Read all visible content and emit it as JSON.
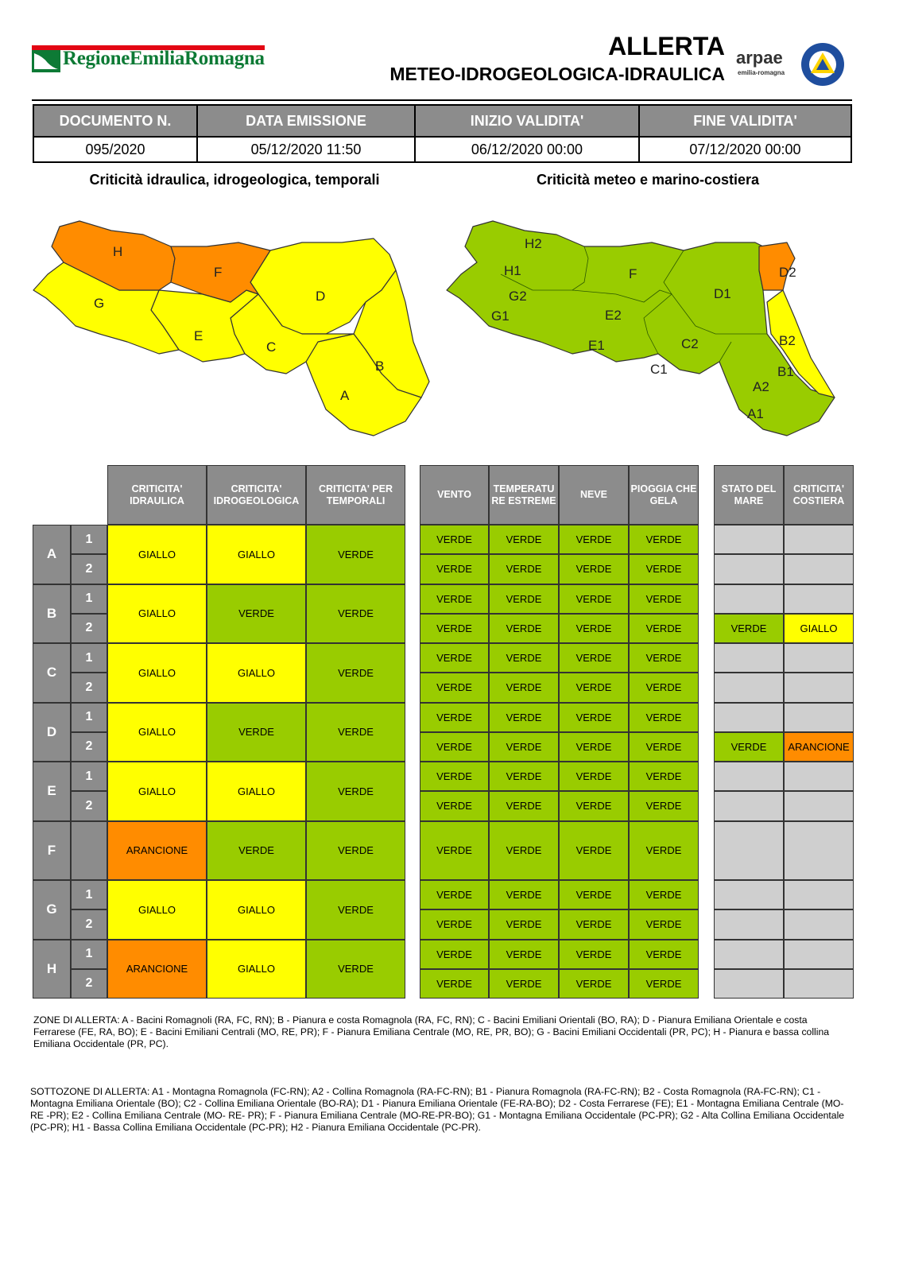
{
  "header": {
    "logo_text": "RegioneEmiliaRomagna",
    "title_line1": "ALLERTA",
    "title_line2": "METEO-IDROGEOLOGICA-IDRAULICA",
    "arpae": "arpae",
    "arpae_sub": "emilia-romagna"
  },
  "doc_table": {
    "headers": [
      "DOCUMENTO N.",
      "DATA EMISSIONE",
      "INIZIO VALIDITA'",
      "FINE VALIDITA'"
    ],
    "values": [
      "095/2020",
      "05/12/2020 11:50",
      "06/12/2020 00:00",
      "07/12/2020 00:00"
    ]
  },
  "maps": {
    "left_title": "Criticità idraulica, idrogeologica, temporali",
    "right_title": "Criticità meteo e marino-costiera",
    "left_labels": [
      "H",
      "F",
      "G",
      "D",
      "E",
      "C",
      "B",
      "A"
    ],
    "right_labels": [
      "H2",
      "H1",
      "G2",
      "G1",
      "F",
      "E2",
      "E1",
      "C2",
      "C1",
      "D1",
      "D2",
      "B2",
      "B1",
      "A2",
      "A1"
    ]
  },
  "colors": {
    "GIALLO": "#ffff00",
    "VERDE": "#99cc00",
    "ARANCIONE": "#ff8c00",
    "grey": "#8c8c8c"
  },
  "table": {
    "hydro_headers": [
      "CRITICITA' IDRAULICA",
      "CRITICITA' IDROGEOLOGICA",
      "CRITICITA' PER TEMPORALI"
    ],
    "meteo_headers": [
      "VENTO",
      "TEMPERATU RE ESTREME",
      "NEVE",
      "PIOGGIA CHE GELA"
    ],
    "sea_headers": [
      "STATO DEL MARE",
      "CRITICITA' COSTIERA"
    ],
    "zones": [
      {
        "zone": "A",
        "subs": [
          "1",
          "2"
        ],
        "hydro": [
          "GIALLO",
          "GIALLO",
          "VERDE"
        ],
        "meteo": [
          [
            "VERDE",
            "VERDE",
            "VERDE",
            "VERDE"
          ],
          [
            "VERDE",
            "VERDE",
            "VERDE",
            "VERDE"
          ]
        ],
        "sea": [
          [
            "",
            ""
          ],
          [
            "",
            ""
          ]
        ]
      },
      {
        "zone": "B",
        "subs": [
          "1",
          "2"
        ],
        "hydro": [
          "GIALLO",
          "VERDE",
          "VERDE"
        ],
        "meteo": [
          [
            "VERDE",
            "VERDE",
            "VERDE",
            "VERDE"
          ],
          [
            "VERDE",
            "VERDE",
            "VERDE",
            "VERDE"
          ]
        ],
        "sea": [
          [
            "",
            ""
          ],
          [
            "VERDE",
            "GIALLO"
          ]
        ]
      },
      {
        "zone": "C",
        "subs": [
          "1",
          "2"
        ],
        "hydro": [
          "GIALLO",
          "GIALLO",
          "VERDE"
        ],
        "meteo": [
          [
            "VERDE",
            "VERDE",
            "VERDE",
            "VERDE"
          ],
          [
            "VERDE",
            "VERDE",
            "VERDE",
            "VERDE"
          ]
        ],
        "sea": [
          [
            "",
            ""
          ],
          [
            "",
            ""
          ]
        ]
      },
      {
        "zone": "D",
        "subs": [
          "1",
          "2"
        ],
        "hydro": [
          "GIALLO",
          "VERDE",
          "VERDE"
        ],
        "meteo": [
          [
            "VERDE",
            "VERDE",
            "VERDE",
            "VERDE"
          ],
          [
            "VERDE",
            "VERDE",
            "VERDE",
            "VERDE"
          ]
        ],
        "sea": [
          [
            "",
            ""
          ],
          [
            "VERDE",
            "ARANCIONE"
          ]
        ]
      },
      {
        "zone": "E",
        "subs": [
          "1",
          "2"
        ],
        "hydro": [
          "GIALLO",
          "GIALLO",
          "VERDE"
        ],
        "meteo": [
          [
            "VERDE",
            "VERDE",
            "VERDE",
            "VERDE"
          ],
          [
            "VERDE",
            "VERDE",
            "VERDE",
            "VERDE"
          ]
        ],
        "sea": [
          [
            "",
            ""
          ],
          [
            "",
            ""
          ]
        ]
      },
      {
        "zone": "F",
        "subs": [
          ""
        ],
        "hydro": [
          "ARANCIONE",
          "VERDE",
          "VERDE"
        ],
        "meteo": [
          [
            "VERDE",
            "VERDE",
            "VERDE",
            "VERDE"
          ]
        ],
        "sea": [
          [
            "",
            ""
          ]
        ]
      },
      {
        "zone": "G",
        "subs": [
          "1",
          "2"
        ],
        "hydro": [
          "GIALLO",
          "GIALLO",
          "VERDE"
        ],
        "meteo": [
          [
            "VERDE",
            "VERDE",
            "VERDE",
            "VERDE"
          ],
          [
            "VERDE",
            "VERDE",
            "VERDE",
            "VERDE"
          ]
        ],
        "sea": [
          [
            "",
            ""
          ],
          [
            "",
            ""
          ]
        ]
      },
      {
        "zone": "H",
        "subs": [
          "1",
          "2"
        ],
        "hydro": [
          "ARANCIONE",
          "GIALLO",
          "VERDE"
        ],
        "meteo": [
          [
            "VERDE",
            "VERDE",
            "VERDE",
            "VERDE"
          ],
          [
            "VERDE",
            "VERDE",
            "VERDE",
            "VERDE"
          ]
        ],
        "sea": [
          [
            "",
            ""
          ],
          [
            "",
            ""
          ]
        ]
      }
    ]
  },
  "legend": {
    "zones_text": "ZONE DI ALLERTA: A - Bacini Romagnoli (RA, FC, RN); B - Pianura e costa Romagnola (RA, FC, RN); C - Bacini Emiliani Orientali (BO, RA); D - Pianura Emiliana Orientale e costa Ferrarese (FE, RA, BO); E - Bacini Emiliani Centrali (MO, RE, PR); F - Pianura Emiliana Centrale (MO, RE, PR, BO); G - Bacini Emiliani Occidentali (PR, PC); H - Pianura e bassa collina Emiliana Occidentale (PR, PC).",
    "subzones_text": "SOTTOZONE DI ALLERTA: A1 - Montagna Romagnola (FC-RN); A2 - Collina Romagnola (RA-FC-RN); B1 - Pianura Romagnola (RA-FC-RN); B2 - Costa Romagnola (RA-FC-RN); C1 - Montagna Emiliana Orientale (BO); C2 - Collina Emiliana Orientale (BO-RA); D1 - Pianura Emiliana Orientale (FE-RA-BO); D2 - Costa Ferrarese (FE); E1 - Montagna Emiliana Centrale (MO- RE -PR); E2 - Collina Emiliana Centrale (MO- RE- PR); F - Pianura Emiliana Centrale (MO-RE-PR-BO); G1 - Montagna Emiliana Occidentale (PC-PR); G2 - Alta Collina Emiliana Occidentale (PC-PR); H1 - Bassa Collina Emiliana Occidentale (PC-PR); H2 - Pianura Emiliana Occidentale (PC-PR)."
  }
}
